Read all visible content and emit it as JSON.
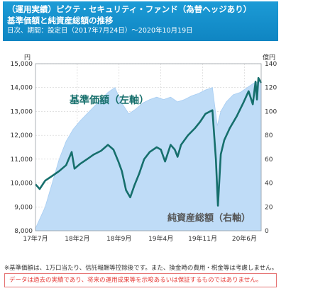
{
  "header": {
    "line1": "（運用実績）ピクテ・セキュリティ・ファンド（為替ヘッジあり）",
    "line2": "基準価額と純資産総額の推移",
    "line3": "日次、期間：設定日（2017年7月24日）～2020年10月19日"
  },
  "footnote": "※基準価額は、1万口当たり、信託報酬等控除後です。また、換金時の費用・税金等は考慮しません。",
  "disclaimer": "データは過去の実績であり、将来の運用成果等を示唆あるいは保証するものではありません。",
  "chart_data": {
    "type": "line",
    "left_axis": {
      "unit": "円",
      "ticks": [
        "8,000",
        "9,000",
        "10,000",
        "11,000",
        "12,000",
        "13,000",
        "14,000",
        "15,000"
      ],
      "ylim": [
        8000,
        15000
      ]
    },
    "right_axis": {
      "unit": "億円",
      "ticks": [
        "0",
        "20",
        "40",
        "60",
        "80",
        "100",
        "120",
        "140"
      ],
      "ylim": [
        0,
        140
      ]
    },
    "x_ticks": [
      "17年7月",
      "18年2月",
      "18年9月",
      "19年4月",
      "19年11月",
      "20年6月"
    ],
    "grid": true,
    "series": [
      {
        "name": "基準価額（左軸）",
        "axis": "left",
        "color": "#166f6c",
        "x": [
          2017.56,
          2017.62,
          2017.7,
          2017.8,
          2017.9,
          2018.0,
          2018.08,
          2018.12,
          2018.2,
          2018.3,
          2018.4,
          2018.5,
          2018.6,
          2018.68,
          2018.75,
          2018.8,
          2018.86,
          2018.92,
          2018.98,
          2019.05,
          2019.12,
          2019.2,
          2019.3,
          2019.36,
          2019.42,
          2019.5,
          2019.56,
          2019.6,
          2019.65,
          2019.75,
          2019.85,
          2019.92,
          2020.0,
          2020.1,
          2020.15,
          2020.18,
          2020.22,
          2020.27,
          2020.35,
          2020.45,
          2020.55,
          2020.62,
          2020.68,
          2020.72,
          2020.74,
          2020.76,
          2020.8
        ],
        "y": [
          9950,
          9750,
          10100,
          10300,
          10500,
          10750,
          11300,
          10600,
          10800,
          11000,
          11200,
          11350,
          11600,
          11400,
          10900,
          10500,
          9700,
          9400,
          9900,
          10400,
          11000,
          11300,
          11500,
          11400,
          10900,
          11600,
          11400,
          11100,
          11600,
          12000,
          12300,
          12550,
          12900,
          13050,
          11000,
          9050,
          11200,
          11800,
          12300,
          12800,
          13400,
          13850,
          13300,
          14250,
          13500,
          14400,
          14200
        ]
      },
      {
        "name": "純資産総額（右軸）",
        "axis": "right",
        "color": "#bfdcf7",
        "x": [
          2017.56,
          2017.7,
          2017.8,
          2017.9,
          2018.0,
          2018.1,
          2018.2,
          2018.3,
          2018.4,
          2018.5,
          2018.6,
          2018.7,
          2018.8,
          2018.9,
          2019.0,
          2019.1,
          2019.2,
          2019.3,
          2019.4,
          2019.5,
          2019.6,
          2019.7,
          2019.8,
          2019.9,
          2020.0,
          2020.1,
          2020.17,
          2020.22,
          2020.3,
          2020.4,
          2020.5,
          2020.6,
          2020.7,
          2020.8
        ],
        "y": [
          2,
          20,
          40,
          60,
          75,
          85,
          92,
          98,
          104,
          110,
          116,
          120,
          107,
          98,
          102,
          107,
          110,
          112,
          110,
          112,
          108,
          110,
          113,
          115,
          118,
          120,
          88,
          100,
          108,
          114,
          116,
          120,
          124,
          125
        ]
      }
    ]
  },
  "annotations": {
    "nav_label": "基準価額（左軸）",
    "aum_label": "純資産総額（右軸）"
  },
  "colors": {
    "header_bg": "#1592cf",
    "nav_line": "#166f6c",
    "aum_fill": "#bfdcf7"
  }
}
